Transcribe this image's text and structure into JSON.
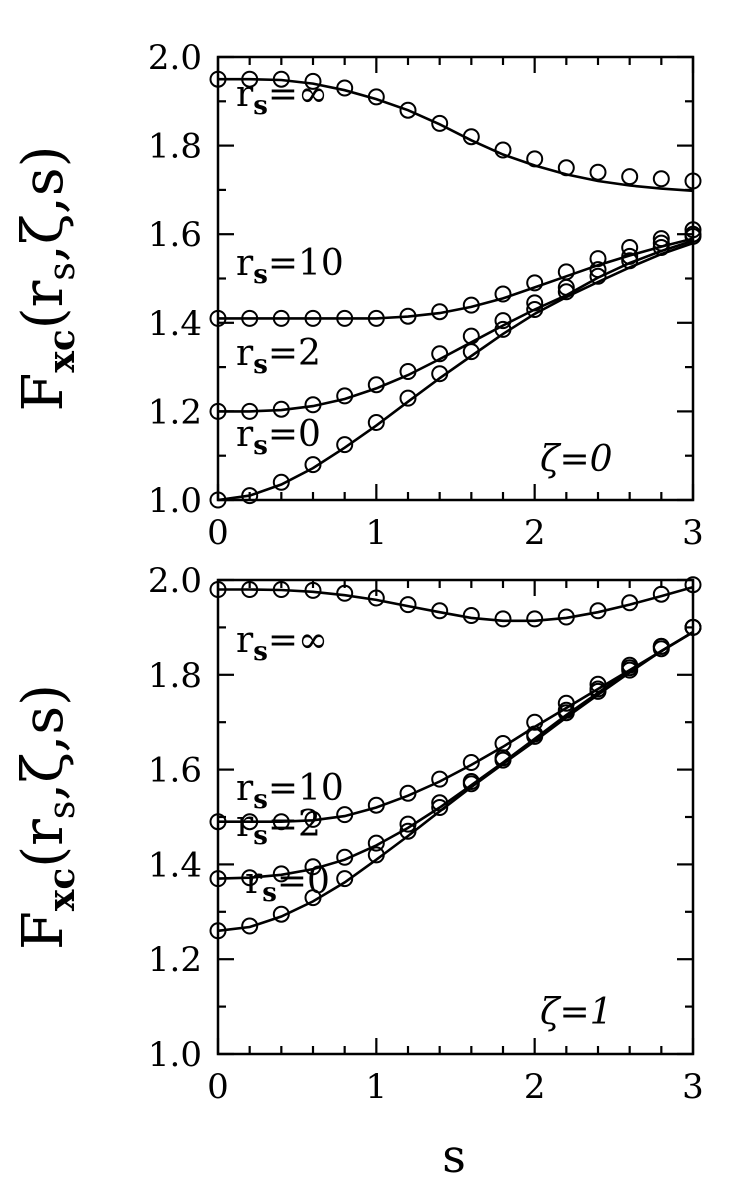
{
  "chart_data": [
    {
      "type": "line",
      "panel_label": "ζ=0",
      "ylabel": "F_xc(r_s,ζ,s)",
      "xlabel": "",
      "xlim": [
        0,
        3
      ],
      "ylim": [
        1.0,
        2.0
      ],
      "xticks": [
        "0",
        "1",
        "2",
        "3"
      ],
      "yticks": [
        "1.0",
        "1.2",
        "1.4",
        "1.6",
        "1.8",
        "2.0"
      ],
      "top_tick_labels": [
        "0",
        "1",
        "2",
        "3"
      ],
      "series": [
        {
          "name": "r_s=∞",
          "curve": {
            "x": [
              0,
              0.2,
              0.4,
              0.6,
              0.8,
              1.0,
              1.2,
              1.4,
              1.6,
              1.8,
              2.0,
              2.2,
              2.4,
              2.6,
              2.8,
              3.0
            ],
            "y": [
              1.95,
              1.95,
              1.948,
              1.94,
              1.925,
              1.905,
              1.88,
              1.848,
              1.812,
              1.78,
              1.755,
              1.735,
              1.72,
              1.71,
              1.703,
              1.698
            ]
          },
          "points": {
            "x": [
              0,
              0.2,
              0.4,
              0.6,
              0.8,
              1.0,
              1.2,
              1.4,
              1.6,
              1.8,
              2.0,
              2.2,
              2.4,
              2.6,
              2.8,
              3.0
            ],
            "y": [
              1.95,
              1.95,
              1.95,
              1.945,
              1.93,
              1.91,
              1.88,
              1.85,
              1.82,
              1.79,
              1.77,
              1.75,
              1.74,
              1.73,
              1.725,
              1.72
            ]
          }
        },
        {
          "name": "r_s=10",
          "curve": {
            "x": [
              0,
              0.2,
              0.4,
              0.6,
              0.8,
              1.0,
              1.2,
              1.4,
              1.6,
              1.8,
              2.0,
              2.2,
              2.4,
              2.6,
              2.8,
              3.0
            ],
            "y": [
              1.41,
              1.41,
              1.41,
              1.41,
              1.41,
              1.41,
              1.414,
              1.422,
              1.436,
              1.455,
              1.48,
              1.505,
              1.53,
              1.552,
              1.572,
              1.59
            ]
          },
          "points": {
            "x": [
              0,
              0.2,
              0.4,
              0.6,
              0.8,
              1.0,
              1.2,
              1.4,
              1.6,
              1.8,
              2.0,
              2.2,
              2.4,
              2.6,
              2.8,
              3.0
            ],
            "y": [
              1.41,
              1.41,
              1.41,
              1.41,
              1.41,
              1.41,
              1.415,
              1.425,
              1.44,
              1.465,
              1.49,
              1.515,
              1.545,
              1.57,
              1.59,
              1.61
            ]
          }
        },
        {
          "name": "r_s=2",
          "curve": {
            "x": [
              0,
              0.2,
              0.4,
              0.6,
              0.8,
              1.0,
              1.2,
              1.4,
              1.6,
              1.8,
              2.0,
              2.2,
              2.4,
              2.6,
              2.8,
              3.0
            ],
            "y": [
              1.2,
              1.2,
              1.203,
              1.212,
              1.228,
              1.252,
              1.282,
              1.318,
              1.356,
              1.394,
              1.43,
              1.462,
              1.502,
              1.535,
              1.562,
              1.585
            ]
          },
          "points": {
            "x": [
              0,
              0.2,
              0.4,
              0.6,
              0.8,
              1.0,
              1.2,
              1.4,
              1.6,
              1.8,
              2.0,
              2.2,
              2.4,
              2.6,
              2.8,
              3.0
            ],
            "y": [
              1.2,
              1.2,
              1.205,
              1.215,
              1.235,
              1.26,
              1.29,
              1.33,
              1.37,
              1.405,
              1.445,
              1.48,
              1.52,
              1.55,
              1.58,
              1.6
            ]
          }
        },
        {
          "name": "r_s=0",
          "curve": {
            "x": [
              0,
              0.2,
              0.4,
              0.6,
              0.8,
              1.0,
              1.2,
              1.4,
              1.6,
              1.8,
              2.0,
              2.2,
              2.4,
              2.6,
              2.8,
              3.0
            ],
            "y": [
              1.0,
              1.01,
              1.035,
              1.072,
              1.118,
              1.168,
              1.222,
              1.275,
              1.325,
              1.375,
              1.42,
              1.458,
              1.492,
              1.525,
              1.555,
              1.58
            ]
          },
          "points": {
            "x": [
              0,
              0.2,
              0.4,
              0.6,
              0.8,
              1.0,
              1.2,
              1.4,
              1.6,
              1.8,
              2.0,
              2.2,
              2.4,
              2.6,
              2.8,
              3.0
            ],
            "y": [
              1.0,
              1.01,
              1.04,
              1.08,
              1.125,
              1.175,
              1.23,
              1.285,
              1.335,
              1.385,
              1.43,
              1.47,
              1.505,
              1.54,
              1.57,
              1.595
            ]
          }
        }
      ]
    },
    {
      "type": "line",
      "panel_label": "ζ=1",
      "ylabel": "F_xc(r_s,ζ,s)",
      "xlabel": "s",
      "xlim": [
        0,
        3
      ],
      "ylim": [
        1.0,
        2.0
      ],
      "xticks": [
        "0",
        "1",
        "2",
        "3"
      ],
      "yticks": [
        "1.0",
        "1.2",
        "1.4",
        "1.6",
        "1.8",
        "2.0"
      ],
      "series": [
        {
          "name": "r_s=∞",
          "curve": {
            "x": [
              0,
              0.2,
              0.4,
              0.6,
              0.8,
              1.0,
              1.2,
              1.4,
              1.6,
              1.8,
              2.0,
              2.2,
              2.4,
              2.6,
              2.8,
              3.0
            ],
            "y": [
              1.98,
              1.98,
              1.979,
              1.975,
              1.968,
              1.958,
              1.945,
              1.932,
              1.92,
              1.914,
              1.914,
              1.92,
              1.932,
              1.948,
              1.966,
              1.985
            ]
          },
          "points": {
            "x": [
              0,
              0.2,
              0.4,
              0.6,
              0.8,
              1.0,
              1.2,
              1.4,
              1.6,
              1.8,
              2.0,
              2.2,
              2.4,
              2.6,
              2.8,
              3.0
            ],
            "y": [
              1.98,
              1.98,
              1.98,
              1.978,
              1.972,
              1.962,
              1.948,
              1.935,
              1.925,
              1.918,
              1.918,
              1.922,
              1.935,
              1.952,
              1.97,
              1.99
            ]
          }
        },
        {
          "name": "r_s=10",
          "curve": {
            "x": [
              0,
              0.2,
              0.4,
              0.6,
              0.8,
              1.0,
              1.2,
              1.4,
              1.6,
              1.8,
              2.0,
              2.2,
              2.4,
              2.6,
              2.8,
              3.0
            ],
            "y": [
              1.49,
              1.49,
              1.49,
              1.493,
              1.502,
              1.52,
              1.545,
              1.575,
              1.61,
              1.648,
              1.69,
              1.73,
              1.77,
              1.81,
              1.85,
              1.89
            ]
          },
          "points": {
            "x": [
              0,
              0.2,
              0.4,
              0.6,
              0.8,
              1.0,
              1.2,
              1.4,
              1.6,
              1.8,
              2.0,
              2.2,
              2.4,
              2.6,
              2.8,
              3.0
            ],
            "y": [
              1.49,
              1.49,
              1.49,
              1.495,
              1.505,
              1.525,
              1.55,
              1.58,
              1.615,
              1.655,
              1.7,
              1.74,
              1.78,
              1.82,
              1.86,
              1.9
            ]
          }
        },
        {
          "name": "r_s=2",
          "curve": {
            "x": [
              0,
              0.2,
              0.4,
              0.6,
              0.8,
              1.0,
              1.2,
              1.4,
              1.6,
              1.8,
              2.0,
              2.2,
              2.4,
              2.6,
              2.8,
              3.0
            ],
            "y": [
              1.37,
              1.372,
              1.378,
              1.39,
              1.41,
              1.44,
              1.477,
              1.52,
              1.567,
              1.615,
              1.665,
              1.715,
              1.762,
              1.808,
              1.85,
              1.89
            ]
          },
          "points": {
            "x": [
              0,
              0.2,
              0.4,
              0.6,
              0.8,
              1.0,
              1.2,
              1.4,
              1.6,
              1.8,
              2.0,
              2.2,
              2.4,
              2.6,
              2.8,
              3.0
            ],
            "y": [
              1.37,
              1.372,
              1.38,
              1.395,
              1.415,
              1.445,
              1.485,
              1.53,
              1.575,
              1.625,
              1.675,
              1.725,
              1.77,
              1.815,
              1.86,
              1.9
            ]
          }
        },
        {
          "name": "r_s=0",
          "curve": {
            "x": [
              0,
              0.2,
              0.4,
              0.6,
              0.8,
              1.0,
              1.2,
              1.4,
              1.6,
              1.8,
              2.0,
              2.2,
              2.4,
              2.6,
              2.8,
              3.0
            ],
            "y": [
              1.26,
              1.268,
              1.29,
              1.322,
              1.362,
              1.41,
              1.46,
              1.512,
              1.563,
              1.612,
              1.66,
              1.71,
              1.758,
              1.805,
              1.85,
              1.89
            ]
          },
          "points": {
            "x": [
              0,
              0.2,
              0.4,
              0.6,
              0.8,
              1.0,
              1.2,
              1.4,
              1.6,
              1.8,
              2.0,
              2.2,
              2.4,
              2.6,
              2.8,
              3.0
            ],
            "y": [
              1.26,
              1.27,
              1.295,
              1.33,
              1.37,
              1.42,
              1.47,
              1.52,
              1.57,
              1.62,
              1.67,
              1.72,
              1.765,
              1.81,
              1.855,
              1.9
            ]
          }
        }
      ]
    }
  ]
}
